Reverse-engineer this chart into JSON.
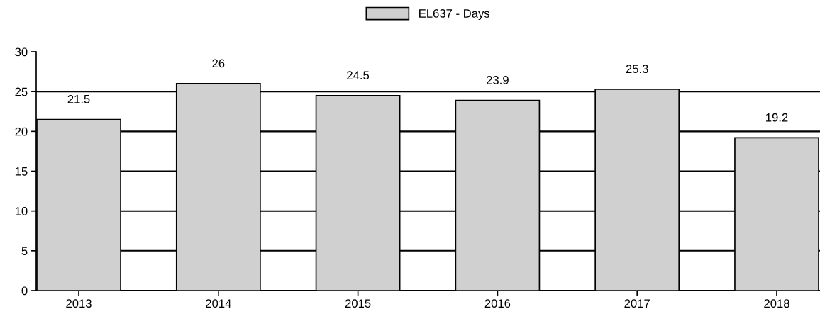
{
  "chart_data": {
    "type": "bar",
    "categories": [
      "2013",
      "2014",
      "2015",
      "2016",
      "2017",
      "2018"
    ],
    "series": [
      {
        "name": "EL637 - Days",
        "color": "#d0d0d0",
        "values": [
          21.5,
          26,
          24.5,
          23.9,
          25.3,
          19.2
        ]
      }
    ],
    "ylim": [
      0,
      30
    ],
    "yticks": [
      0,
      5,
      10,
      15,
      20,
      25,
      30
    ],
    "grid": "y",
    "legend": "top",
    "data_labels": true
  }
}
